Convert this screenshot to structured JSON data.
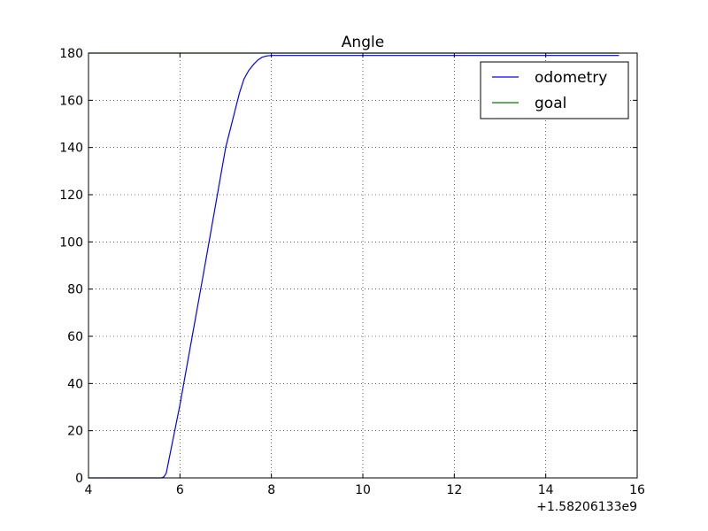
{
  "chart_data": {
    "type": "line",
    "title": "Angle",
    "xlabel": "",
    "ylabel": "",
    "x_offset_label": "+1.58206133e9",
    "xlim": [
      4,
      16
    ],
    "ylim": [
      0,
      180
    ],
    "x_ticks": [
      4,
      6,
      8,
      10,
      12,
      14,
      16
    ],
    "y_ticks": [
      0,
      20,
      40,
      60,
      80,
      100,
      120,
      140,
      160,
      180
    ],
    "grid": true,
    "legend_position": "top-right",
    "series": [
      {
        "name": "odometry",
        "color": "#0000ff",
        "x": [
          4.0,
          5.6,
          5.65,
          5.7,
          6.0,
          6.5,
          7.0,
          7.3,
          7.4,
          7.5,
          7.6,
          7.7,
          7.8,
          7.9,
          8.0,
          8.2,
          10,
          12,
          14,
          15.6
        ],
        "y": [
          0,
          0,
          0.5,
          2,
          31,
          85,
          140,
          163,
          169,
          172.5,
          175,
          177,
          178.3,
          178.8,
          179,
          179,
          179,
          179,
          179,
          179
        ]
      },
      {
        "name": "goal",
        "color": "#008000",
        "x": [
          4.0,
          15.6
        ],
        "y": [
          180,
          180
        ]
      }
    ]
  }
}
